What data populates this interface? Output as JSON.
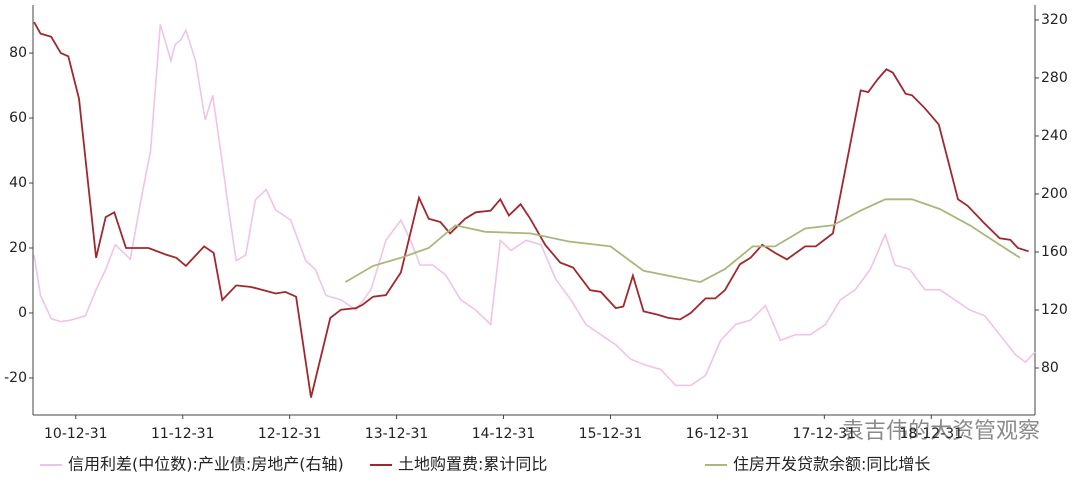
{
  "chart_data": {
    "type": "line",
    "annotation": "袁吉伟的大资管观察",
    "xlim": [
      2010.6,
      2019.97
    ],
    "xticks": [
      {
        "value": 2011,
        "label": "10-12-31"
      },
      {
        "value": 2012,
        "label": "11-12-31"
      },
      {
        "value": 2013,
        "label": "12-12-31"
      },
      {
        "value": 2014,
        "label": "13-12-31"
      },
      {
        "value": 2015,
        "label": "14-12-31"
      },
      {
        "value": 2016,
        "label": "15-12-31"
      },
      {
        "value": 2017,
        "label": "16-12-31"
      },
      {
        "value": 2018,
        "label": "17-12-31"
      },
      {
        "value": 2019,
        "label": "18-12-31"
      }
    ],
    "ylim": [
      -31.4,
      94.8
    ],
    "yticks": [
      -20,
      0,
      20,
      40,
      60,
      80
    ],
    "y2lim": [
      47.6,
      330.3
    ],
    "y2ticks": [
      80,
      120,
      160,
      200,
      240,
      280,
      320
    ],
    "series": [
      {
        "name": "信用利差(中位数):产业债:房地产(右轴)",
        "color": "#f0c4e4",
        "axis": "y2",
        "x": [
          2010.61,
          2010.67,
          2010.77,
          2010.86,
          2010.95,
          2011.09,
          2011.19,
          2011.28,
          2011.37,
          2011.51,
          2011.61,
          2011.7,
          2011.79,
          2011.89,
          2011.93,
          2011.98,
          2012.03,
          2012.12,
          2012.21,
          2012.28,
          2012.36,
          2012.43,
          2012.5,
          2012.59,
          2012.68,
          2012.78,
          2012.87,
          2013.01,
          2013.15,
          2013.24,
          2013.34,
          2013.48,
          2013.62,
          2013.76,
          2013.9,
          2014.04,
          2014.13,
          2014.22,
          2014.34,
          2014.46,
          2014.6,
          2014.74,
          2014.88,
          2014.97,
          2015.07,
          2015.21,
          2015.35,
          2015.49,
          2015.63,
          2015.77,
          2015.91,
          2016.05,
          2016.19,
          2016.33,
          2016.47,
          2016.61,
          2016.75,
          2016.89,
          2017.03,
          2017.17,
          2017.31,
          2017.45,
          2017.59,
          2017.73,
          2017.87,
          2018.01,
          2018.15,
          2018.29,
          2018.43,
          2018.57,
          2018.66,
          2018.8,
          2018.94,
          2019.08,
          2019.22,
          2019.36,
          2019.5,
          2019.64,
          2019.79,
          2019.88,
          2019.97
        ],
        "values": [
          158,
          130,
          114,
          112,
          113,
          116,
          134,
          148,
          165,
          155,
          196,
          230,
          317,
          292,
          303,
          306,
          313,
          292,
          251,
          268,
          227,
          189,
          154,
          158,
          196,
          203,
          189,
          182,
          154,
          148,
          130,
          127,
          120,
          134,
          168,
          182,
          168,
          151,
          151,
          144,
          127,
          120,
          110,
          168,
          161,
          168,
          165,
          141,
          127,
          110,
          103,
          96,
          86,
          82,
          79,
          68,
          68,
          75,
          99,
          110,
          113,
          123,
          99,
          103,
          103,
          110,
          127,
          134,
          148,
          172,
          151,
          148,
          134,
          134,
          127,
          120,
          116,
          103,
          89,
          84,
          91
        ]
      },
      {
        "name": "土地购置费:累计同比",
        "color": "#a0282d",
        "x": [
          2010.61,
          2010.67,
          2010.77,
          2010.86,
          2010.93,
          2011.03,
          2011.19,
          2011.28,
          2011.36,
          2011.47,
          2011.68,
          2011.84,
          2011.94,
          2012.03,
          2012.2,
          2012.29,
          2012.37,
          2012.5,
          2012.64,
          2012.87,
          2012.96,
          2013.06,
          2013.2,
          2013.38,
          2013.48,
          2013.62,
          2013.68,
          2013.78,
          2013.9,
          2014.04,
          2014.21,
          2014.3,
          2014.41,
          2014.5,
          2014.64,
          2014.74,
          2014.88,
          2014.97,
          2015.05,
          2015.16,
          2015.25,
          2015.39,
          2015.53,
          2015.65,
          2015.81,
          2015.91,
          2016.05,
          2016.12,
          2016.21,
          2016.31,
          2016.44,
          2016.54,
          2016.65,
          2016.75,
          2016.89,
          2016.98,
          2017.07,
          2017.21,
          2017.31,
          2017.42,
          2017.54,
          2017.65,
          2017.82,
          2017.92,
          2018.08,
          2018.34,
          2018.41,
          2018.5,
          2018.58,
          2018.64,
          2018.76,
          2018.82,
          2018.94,
          2019.07,
          2019.25,
          2019.34,
          2019.5,
          2019.64,
          2019.74,
          2019.81,
          2019.91
        ],
        "values": [
          89.5,
          86,
          85,
          80,
          79,
          66,
          17,
          29.5,
          31,
          20,
          20,
          18,
          17,
          14.5,
          20.5,
          18.5,
          4,
          8.5,
          8,
          6,
          6.5,
          5,
          -26,
          -1.5,
          1,
          1.5,
          2.5,
          5,
          5.5,
          12.5,
          35.5,
          29,
          28,
          24.5,
          29,
          31,
          31.5,
          35,
          30,
          33.5,
          29,
          21,
          15.5,
          14,
          7,
          6.5,
          1.5,
          2,
          11.5,
          0.5,
          -0.5,
          -1.5,
          -2,
          0,
          4.5,
          4.5,
          7,
          15,
          17,
          21,
          18.5,
          16.5,
          20.5,
          20.5,
          24.5,
          68.5,
          68,
          72,
          75,
          74,
          67.5,
          67,
          63,
          58,
          35,
          33,
          27.5,
          23,
          22.5,
          20,
          19
        ]
      },
      {
        "name": "住房开发贷款余额:同比增长",
        "color": "#a8b87a",
        "x": [
          2013.52,
          2013.78,
          2014.04,
          2014.3,
          2014.55,
          2014.83,
          2015.25,
          2015.61,
          2016.0,
          2016.31,
          2016.84,
          2017.07,
          2017.33,
          2017.54,
          2017.82,
          2018.08,
          2018.34,
          2018.57,
          2018.82,
          2019.08,
          2019.36,
          2019.64,
          2019.83
        ],
        "values": [
          9.5,
          14.5,
          17,
          20,
          27,
          25,
          24.5,
          22,
          20.5,
          13,
          9.5,
          13.5,
          20.5,
          20.5,
          26,
          27,
          31.5,
          35,
          35,
          32,
          27,
          21,
          17
        ]
      }
    ]
  }
}
